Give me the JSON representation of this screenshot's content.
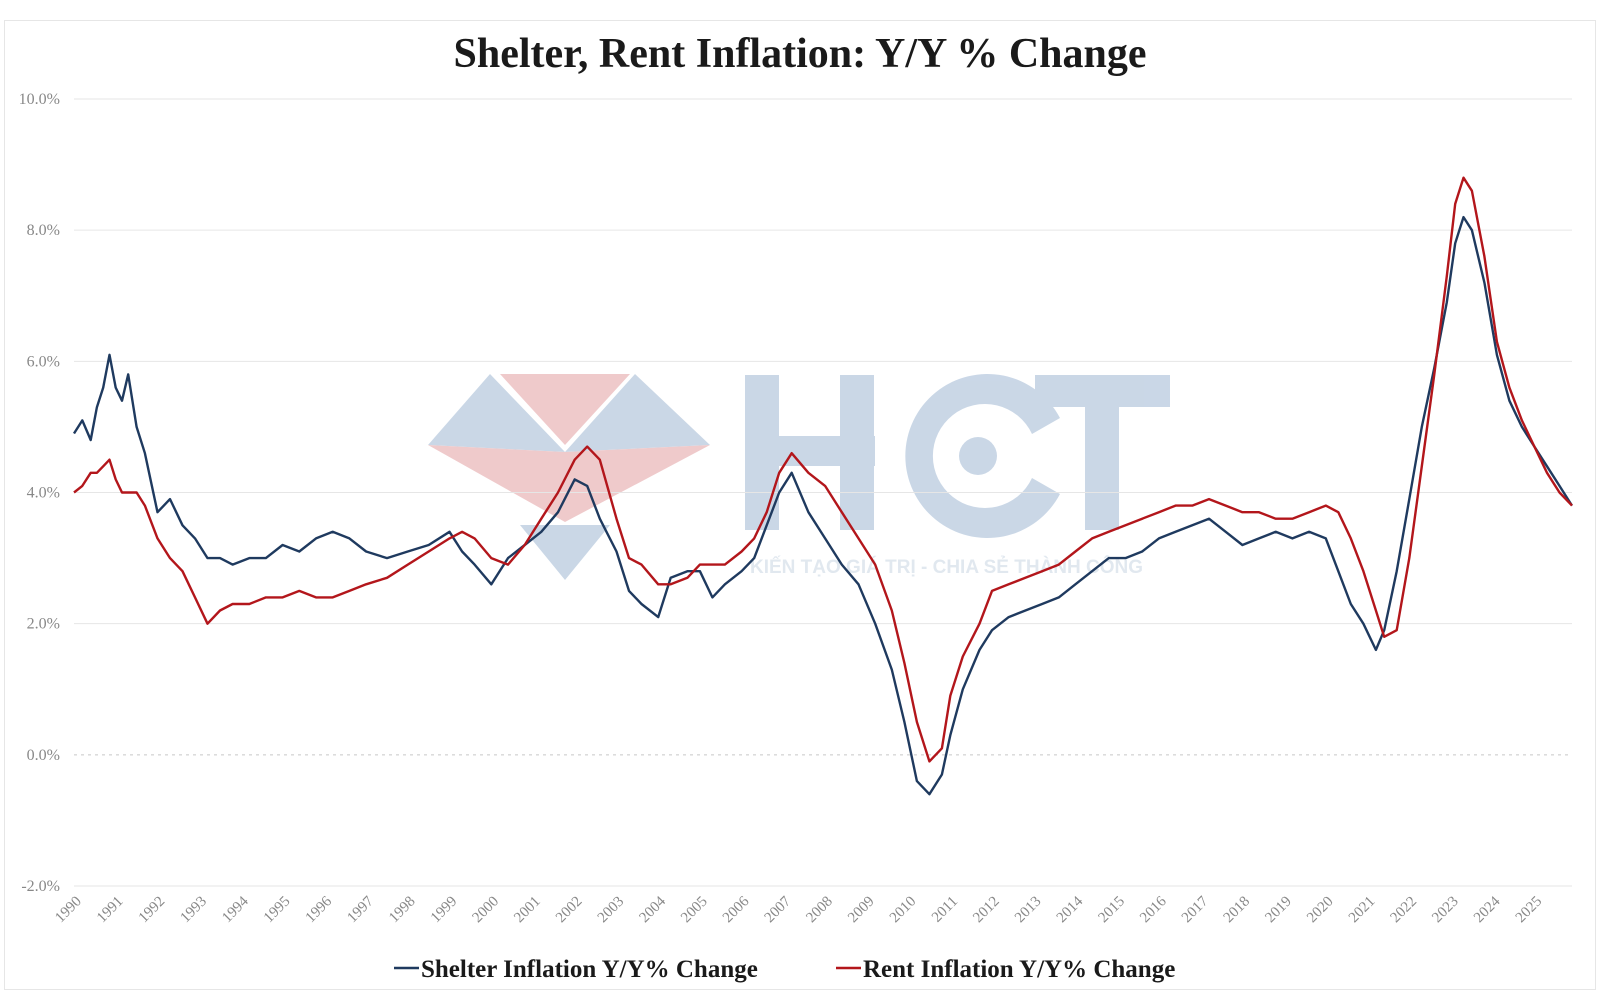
{
  "watermark": {
    "logo_text": "HCT",
    "tagline": "KIẾN TẠO GIÁ TRỊ - CHIA SẺ THÀNH CÔNG"
  },
  "chart_data": {
    "type": "line",
    "title": "Shelter, Rent Inflation: Y/Y % Change",
    "xlabel": "",
    "ylabel": "",
    "ylim": [
      -2.0,
      10.0
    ],
    "xlim": [
      1990,
      2025.9
    ],
    "yticks": [
      "10.0%",
      "8.0%",
      "6.0%",
      "4.0%",
      "2.0%",
      "0.0%",
      "-2.0%"
    ],
    "ytick_values": [
      10,
      8,
      6,
      4,
      2,
      0,
      -2
    ],
    "xticks": [
      "1990",
      "1991",
      "1992",
      "1993",
      "1994",
      "1995",
      "1996",
      "1997",
      "1998",
      "1999",
      "2000",
      "2001",
      "2002",
      "2003",
      "2004",
      "2005",
      "2006",
      "2007",
      "2008",
      "2009",
      "2010",
      "2011",
      "2012",
      "2013",
      "2014",
      "2015",
      "2016",
      "2017",
      "2018",
      "2019",
      "2020",
      "2021",
      "2022",
      "2023",
      "2024",
      "2025"
    ],
    "grid": true,
    "zero_line": "dotted",
    "legend_position": "bottom",
    "colors": {
      "shelter": "#1f3a5f",
      "rent": "#b3161b",
      "grid": "#e6e6e6",
      "axis_text": "#888888",
      "wm_blue": "#9fb7d3",
      "wm_red": "#e2a0a2"
    },
    "series": [
      {
        "name": "Shelter Inflation Y/Y% Change",
        "x": [
          1990.0,
          1990.2,
          1990.4,
          1990.55,
          1990.7,
          1990.85,
          1991.0,
          1991.15,
          1991.3,
          1991.5,
          1991.7,
          1992.0,
          1992.3,
          1992.6,
          1992.9,
          1993.2,
          1993.5,
          1993.8,
          1994.2,
          1994.6,
          1995.0,
          1995.4,
          1995.8,
          1996.2,
          1996.6,
          1997.0,
          1997.5,
          1998.0,
          1998.5,
          1999.0,
          1999.3,
          1999.6,
          2000.0,
          2000.4,
          2000.8,
          2001.2,
          2001.6,
          2002.0,
          2002.3,
          2002.6,
          2003.0,
          2003.3,
          2003.6,
          2004.0,
          2004.3,
          2004.7,
          2005.0,
          2005.3,
          2005.6,
          2006.0,
          2006.3,
          2006.6,
          2006.9,
          2007.2,
          2007.6,
          2008.0,
          2008.4,
          2008.8,
          2009.2,
          2009.6,
          2009.9,
          2010.2,
          2010.5,
          2010.8,
          2011.0,
          2011.3,
          2011.7,
          2012.0,
          2012.4,
          2012.8,
          2013.2,
          2013.6,
          2014.0,
          2014.4,
          2014.8,
          2015.2,
          2015.6,
          2016.0,
          2016.4,
          2016.8,
          2017.2,
          2017.6,
          2018.0,
          2018.4,
          2018.8,
          2019.2,
          2019.6,
          2020.0,
          2020.3,
          2020.6,
          2020.9,
          2021.2,
          2021.4,
          2021.7,
          2022.0,
          2022.3,
          2022.6,
          2022.9,
          2023.1,
          2023.3,
          2023.5,
          2023.8,
          2024.1,
          2024.4,
          2024.7,
          2025.0,
          2025.3,
          2025.6,
          2025.9
        ],
        "values": [
          4.9,
          5.1,
          4.8,
          5.3,
          5.6,
          6.1,
          5.6,
          5.4,
          5.8,
          5.0,
          4.6,
          3.7,
          3.9,
          3.5,
          3.3,
          3.0,
          3.0,
          2.9,
          3.0,
          3.0,
          3.2,
          3.1,
          3.3,
          3.4,
          3.3,
          3.1,
          3.0,
          3.1,
          3.2,
          3.4,
          3.1,
          2.9,
          2.6,
          3.0,
          3.2,
          3.4,
          3.7,
          4.2,
          4.1,
          3.6,
          3.1,
          2.5,
          2.3,
          2.1,
          2.7,
          2.8,
          2.8,
          2.4,
          2.6,
          2.8,
          3.0,
          3.5,
          4.0,
          4.3,
          3.7,
          3.3,
          2.9,
          2.6,
          2.0,
          1.3,
          0.5,
          -0.4,
          -0.6,
          -0.3,
          0.3,
          1.0,
          1.6,
          1.9,
          2.1,
          2.2,
          2.3,
          2.4,
          2.6,
          2.8,
          3.0,
          3.0,
          3.1,
          3.3,
          3.4,
          3.5,
          3.6,
          3.4,
          3.2,
          3.3,
          3.4,
          3.3,
          3.4,
          3.3,
          2.8,
          2.3,
          2.0,
          1.6,
          1.9,
          2.8,
          3.9,
          5.0,
          5.9,
          6.9,
          7.8,
          8.2,
          8.0,
          7.2,
          6.1,
          5.4,
          5.0,
          4.7,
          4.4,
          4.1,
          3.8
        ]
      },
      {
        "name": "Rent Inflation Y/Y% Change",
        "x": [
          1990.0,
          1990.2,
          1990.4,
          1990.55,
          1990.7,
          1990.85,
          1991.0,
          1991.15,
          1991.3,
          1991.5,
          1991.7,
          1992.0,
          1992.3,
          1992.6,
          1992.9,
          1993.2,
          1993.5,
          1993.8,
          1994.2,
          1994.6,
          1995.0,
          1995.4,
          1995.8,
          1996.2,
          1996.6,
          1997.0,
          1997.5,
          1998.0,
          1998.5,
          1999.0,
          1999.3,
          1999.6,
          2000.0,
          2000.4,
          2000.8,
          2001.2,
          2001.6,
          2002.0,
          2002.3,
          2002.6,
          2003.0,
          2003.3,
          2003.6,
          2004.0,
          2004.3,
          2004.7,
          2005.0,
          2005.3,
          2005.6,
          2006.0,
          2006.3,
          2006.6,
          2006.9,
          2007.2,
          2007.6,
          2008.0,
          2008.4,
          2008.8,
          2009.2,
          2009.6,
          2009.9,
          2010.2,
          2010.5,
          2010.8,
          2011.0,
          2011.3,
          2011.7,
          2012.0,
          2012.4,
          2012.8,
          2013.2,
          2013.6,
          2014.0,
          2014.4,
          2014.8,
          2015.2,
          2015.6,
          2016.0,
          2016.4,
          2016.8,
          2017.2,
          2017.6,
          2018.0,
          2018.4,
          2018.8,
          2019.2,
          2019.6,
          2020.0,
          2020.3,
          2020.6,
          2020.9,
          2021.2,
          2021.4,
          2021.7,
          2022.0,
          2022.3,
          2022.6,
          2022.9,
          2023.1,
          2023.3,
          2023.5,
          2023.8,
          2024.1,
          2024.4,
          2024.7,
          2025.0,
          2025.3,
          2025.6,
          2025.9
        ],
        "values": [
          4.0,
          4.1,
          4.3,
          4.3,
          4.4,
          4.5,
          4.2,
          4.0,
          4.0,
          4.0,
          3.8,
          3.3,
          3.0,
          2.8,
          2.4,
          2.0,
          2.2,
          2.3,
          2.3,
          2.4,
          2.4,
          2.5,
          2.4,
          2.4,
          2.5,
          2.6,
          2.7,
          2.9,
          3.1,
          3.3,
          3.4,
          3.3,
          3.0,
          2.9,
          3.2,
          3.6,
          4.0,
          4.5,
          4.7,
          4.5,
          3.6,
          3.0,
          2.9,
          2.6,
          2.6,
          2.7,
          2.9,
          2.9,
          2.9,
          3.1,
          3.3,
          3.7,
          4.3,
          4.6,
          4.3,
          4.1,
          3.7,
          3.3,
          2.9,
          2.2,
          1.4,
          0.5,
          -0.1,
          0.1,
          0.9,
          1.5,
          2.0,
          2.5,
          2.6,
          2.7,
          2.8,
          2.9,
          3.1,
          3.3,
          3.4,
          3.5,
          3.6,
          3.7,
          3.8,
          3.8,
          3.9,
          3.8,
          3.7,
          3.7,
          3.6,
          3.6,
          3.7,
          3.8,
          3.7,
          3.3,
          2.8,
          2.2,
          1.8,
          1.9,
          3.0,
          4.4,
          5.8,
          7.3,
          8.4,
          8.8,
          8.6,
          7.6,
          6.3,
          5.6,
          5.1,
          4.7,
          4.3,
          4.0,
          3.8
        ]
      }
    ]
  }
}
